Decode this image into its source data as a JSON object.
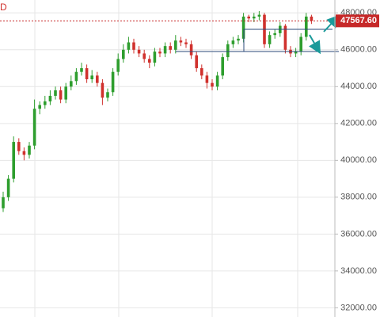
{
  "chart_data": {
    "type": "candlestick",
    "corner_text": "D",
    "up_color": "#2e9e2e",
    "down_color": "#d0312d",
    "open": [
      37400,
      38000,
      39000,
      41000,
      40500,
      40300,
      40800,
      42800,
      43000,
      43200,
      43500,
      43800,
      43300,
      44000,
      44300,
      44800,
      45000,
      44400,
      44600,
      44200,
      43400,
      43700,
      44800,
      45500,
      46000,
      46400,
      46000,
      45800,
      45500,
      45300,
      45900,
      45800,
      46200,
      46000,
      46500,
      46400,
      46300,
      45700,
      45000,
      44600,
      44200,
      44000,
      44600,
      45600,
      46300,
      46500,
      46600,
      47800,
      47700,
      47800,
      47900,
      46300,
      46800,
      46900,
      47300,
      46000,
      45800,
      45900,
      46700,
      47800
    ],
    "high": [
      38300,
      39200,
      41300,
      41200,
      40700,
      41000,
      43300,
      43200,
      43500,
      43800,
      44000,
      44000,
      44200,
      44600,
      45000,
      45300,
      45200,
      44900,
      44800,
      44400,
      43900,
      45000,
      45800,
      46300,
      46700,
      46600,
      46200,
      46000,
      45700,
      46100,
      46100,
      46400,
      46400,
      46800,
      46700,
      46600,
      46500,
      45900,
      45200,
      44800,
      44400,
      44800,
      45800,
      46500,
      46700,
      46800,
      48000,
      47900,
      48000,
      48100,
      48000,
      47000,
      47100,
      47500,
      47400,
      46200,
      46100,
      46900,
      48000,
      47900
    ],
    "low": [
      37200,
      37800,
      38800,
      40300,
      40000,
      40100,
      40600,
      42500,
      42800,
      43000,
      43300,
      43100,
      43100,
      43800,
      44100,
      44600,
      44200,
      44200,
      44000,
      43000,
      43200,
      43500,
      44600,
      45300,
      45800,
      45800,
      45600,
      45300,
      45000,
      45100,
      45600,
      45600,
      45800,
      45800,
      46200,
      46100,
      45500,
      44800,
      44400,
      43900,
      43800,
      43800,
      44400,
      45400,
      46100,
      46300,
      46400,
      47500,
      47500,
      47600,
      46100,
      46100,
      46600,
      46700,
      45800,
      45600,
      45600,
      45700,
      46500,
      47400
    ],
    "close": [
      38000,
      39000,
      41000,
      40500,
      40300,
      40800,
      42800,
      43000,
      43200,
      43500,
      43800,
      43300,
      44000,
      44300,
      44800,
      45000,
      44400,
      44600,
      44200,
      43400,
      43700,
      44800,
      45500,
      46000,
      46400,
      46000,
      45800,
      45500,
      45300,
      45900,
      45800,
      46200,
      46000,
      46500,
      46400,
      46300,
      45700,
      45000,
      44600,
      44200,
      44000,
      44600,
      45600,
      46300,
      46500,
      46600,
      47800,
      47700,
      47800,
      47900,
      46300,
      46800,
      46900,
      47300,
      46000,
      45800,
      45900,
      46700,
      47800,
      47567.6
    ],
    "last_price": {
      "value": 47567.6,
      "label": "47567.60"
    },
    "ylim": [
      31500,
      48700
    ],
    "yticks": [
      {
        "value": 32000,
        "label": "32000.00"
      },
      {
        "value": 34000,
        "label": "34000.00"
      },
      {
        "value": 36000,
        "label": "36000.00"
      },
      {
        "value": 38000,
        "label": "38000.00"
      },
      {
        "value": 40000,
        "label": "40000.00"
      },
      {
        "value": 42000,
        "label": "42000.00"
      },
      {
        "value": 44000,
        "label": "44000.00"
      },
      {
        "value": 46000,
        "label": "46000.00"
      },
      {
        "value": 48000,
        "label": "48000.00"
      }
    ],
    "grid": true
  }
}
